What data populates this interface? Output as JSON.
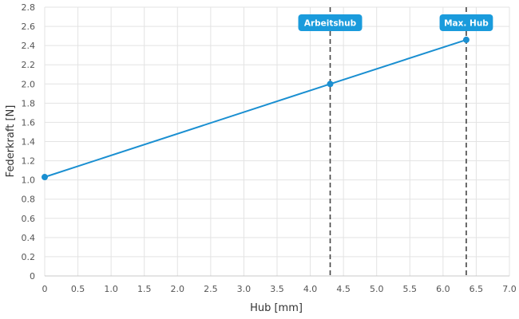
{
  "chart_data": {
    "type": "line",
    "xlabel": "Hub [mm]",
    "ylabel": "Federkraft [N]",
    "xlim": [
      0,
      7
    ],
    "ylim": [
      0,
      2.8
    ],
    "xticks": [
      "0",
      "0.5",
      "1.0",
      "1.5",
      "2.0",
      "2.5",
      "3.0",
      "3.5",
      "4.0",
      "4.5",
      "5.0",
      "5.5",
      "6.0",
      "6.5",
      "7.0"
    ],
    "yticks": [
      "0",
      "0.2",
      "0.4",
      "0.6",
      "0.8",
      "1.0",
      "1.2",
      "1.4",
      "1.6",
      "1.8",
      "2.0",
      "2.2",
      "2.4",
      "2.6",
      "2.8"
    ],
    "grid": true,
    "series": [
      {
        "color": "#1a8fd1",
        "points": [
          {
            "x": 0,
            "y": 1.03
          },
          {
            "x": 4.3,
            "y": 2.0
          },
          {
            "x": 6.35,
            "y": 2.46
          }
        ]
      }
    ],
    "markers": [
      {
        "x": 4.3,
        "label": "Arbeitshub"
      },
      {
        "x": 6.35,
        "label": "Max. Hub"
      }
    ],
    "badge_color": "#1a9bdc",
    "marker_line_color": "#444444"
  }
}
